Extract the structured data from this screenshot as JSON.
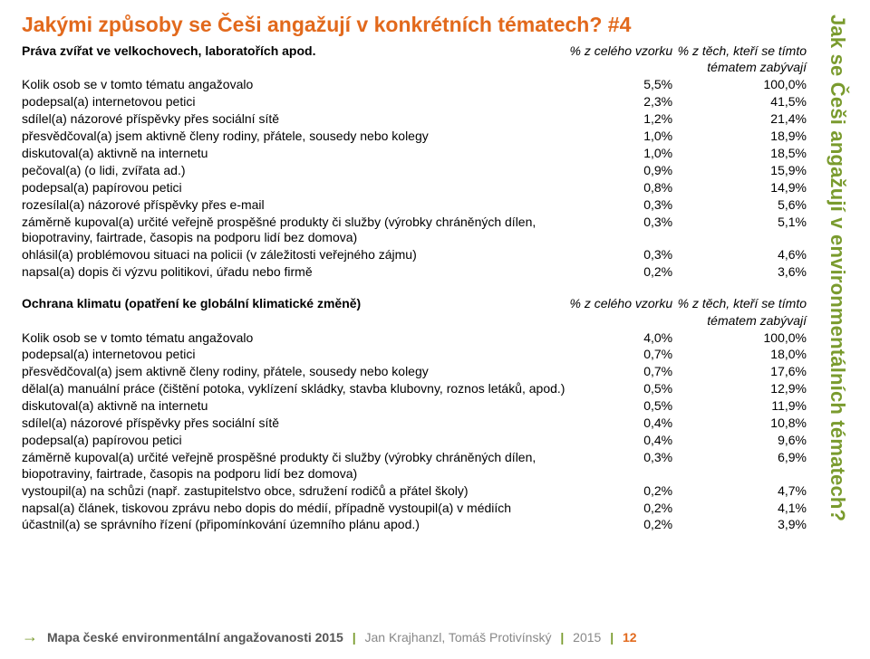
{
  "colors": {
    "title": "#e2691c",
    "sidebar": "#7a9b2e",
    "footer_sep": "#7a9b2e",
    "page_num": "#e2691c",
    "text": "#000000",
    "grey": "#888888"
  },
  "title": "Jakými způsoby se Češi angažují v konkrétních tématech? #4",
  "sidebar_text": "Jak se Češi angažují v environmentálních tématech?",
  "col_headers": {
    "col_a": "% z celého vzorku",
    "col_b_line1": "% z těch, kteří se tímto",
    "col_b_line2": "tématem zabývají"
  },
  "section1": {
    "heading": "Práva zvířat ve velkochovech, laboratořích apod.",
    "rows": [
      {
        "label": "Kolik osob se v tomto tématu angažovalo",
        "a": "5,5%",
        "b": "100,0%"
      },
      {
        "label": "podepsal(a) internetovou petici",
        "a": "2,3%",
        "b": "41,5%"
      },
      {
        "label": "sdílel(a) názorové příspěvky přes sociální sítě",
        "a": "1,2%",
        "b": "21,4%"
      },
      {
        "label": "přesvědčoval(a) jsem aktivně členy rodiny, přátele, sousedy nebo kolegy",
        "a": "1,0%",
        "b": "18,9%"
      },
      {
        "label": "diskutoval(a) aktivně na internetu",
        "a": "1,0%",
        "b": "18,5%"
      },
      {
        "label": "pečoval(a) (o lidi, zvířata ad.)",
        "a": "0,9%",
        "b": "15,9%"
      },
      {
        "label": "podepsal(a) papírovou petici",
        "a": "0,8%",
        "b": "14,9%"
      },
      {
        "label": "rozesílal(a) názorové příspěvky přes e-mail",
        "a": "0,3%",
        "b": "5,6%"
      },
      {
        "label": "záměrně kupoval(a) určité veřejně prospěšné produkty či služby (výrobky chráněných dílen, biopotraviny, fairtrade, časopis na podporu lidí bez domova)",
        "a": "0,3%",
        "b": "5,1%"
      },
      {
        "label": "ohlásil(a) problémovou situaci na policii (v záležitosti veřejného zájmu)",
        "a": "0,3%",
        "b": "4,6%"
      },
      {
        "label": "napsal(a) dopis či výzvu politikovi, úřadu nebo firmě",
        "a": "0,2%",
        "b": "3,6%"
      }
    ]
  },
  "section2": {
    "heading": "Ochrana klimatu (opatření ke globální klimatické změně)",
    "rows": [
      {
        "label": "Kolik osob se v tomto tématu angažovalo",
        "a": "4,0%",
        "b": "100,0%"
      },
      {
        "label": "podepsal(a) internetovou petici",
        "a": "0,7%",
        "b": "18,0%"
      },
      {
        "label": "přesvědčoval(a) jsem aktivně členy rodiny, přátele, sousedy nebo kolegy",
        "a": "0,7%",
        "b": "17,6%"
      },
      {
        "label": "dělal(a) manuální práce (čištění potoka, vyklízení skládky, stavba klubovny, roznos letáků, apod.)",
        "a": "0,5%",
        "b": "12,9%"
      },
      {
        "label": "diskutoval(a) aktivně na internetu",
        "a": "0,5%",
        "b": "11,9%"
      },
      {
        "label": "sdílel(a) názorové příspěvky přes sociální sítě",
        "a": "0,4%",
        "b": "10,8%"
      },
      {
        "label": "podepsal(a) papírovou petici",
        "a": "0,4%",
        "b": "9,6%"
      },
      {
        "label": "záměrně kupoval(a) určité veřejně prospěšné produkty či služby (výrobky chráněných dílen, biopotraviny, fairtrade, časopis na podporu lidí bez domova)",
        "a": "0,3%",
        "b": "6,9%"
      },
      {
        "label": "vystoupil(a) na schůzi (např. zastupitelstvo obce, sdružení rodičů a přátel školy)",
        "a": "0,2%",
        "b": "4,7%"
      },
      {
        "label": "napsal(a) článek, tiskovou zprávu nebo dopis do médií, případně vystoupil(a) v médiích",
        "a": "0,2%",
        "b": "4,1%"
      },
      {
        "label": "účastnil(a) se správního řízení (připomínkování územního plánu apod.)",
        "a": "0,2%",
        "b": "3,9%"
      }
    ]
  },
  "footer": {
    "project": "Mapa české environmentální angažovanosti 2015",
    "authors": "Jan Krajhanzl, Tomáš Protivínský",
    "year": "2015",
    "page": "12"
  }
}
